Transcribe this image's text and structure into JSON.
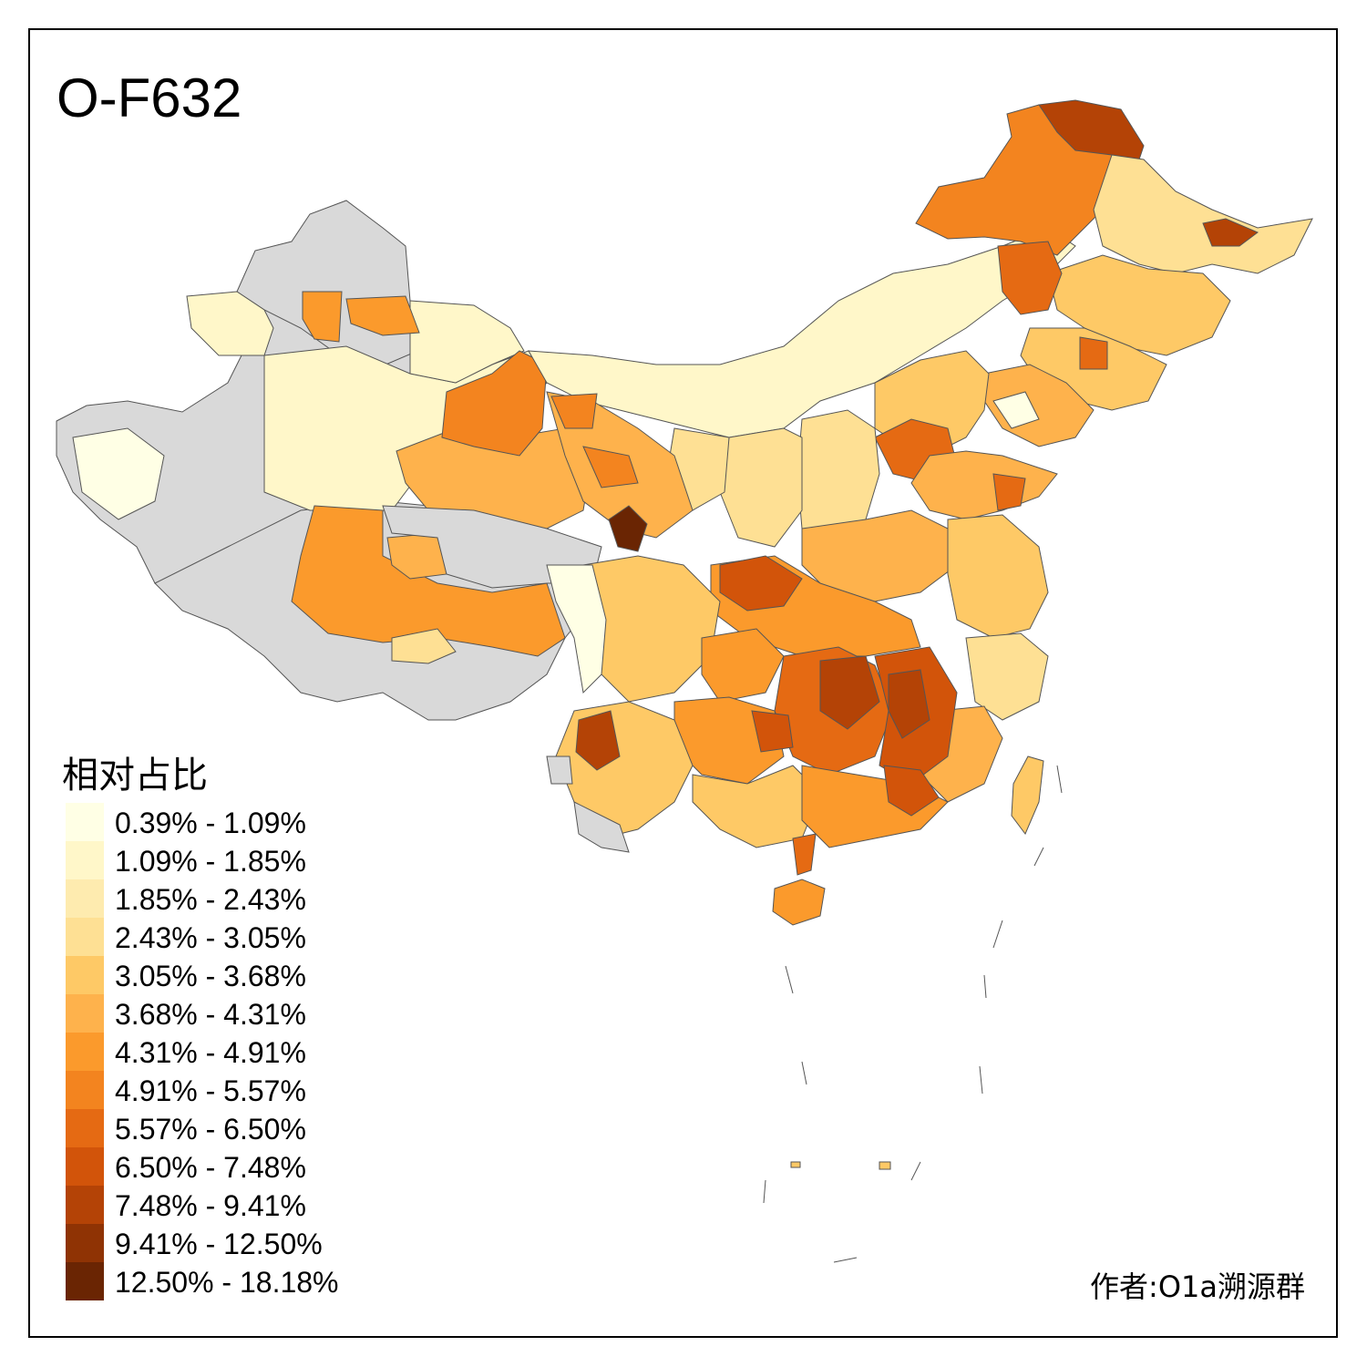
{
  "map": {
    "title": "O-F632",
    "author": "作者:O1a溯源群",
    "no_data_color": "#d9d9d9",
    "border_color": "#555555",
    "legend": {
      "title": "相对占比",
      "items": [
        {
          "label": "0.39% - 1.09%",
          "color": "#ffffe5"
        },
        {
          "label": "1.09% - 1.85%",
          "color": "#fff7c9"
        },
        {
          "label": "1.85% - 2.43%",
          "color": "#feebaf"
        },
        {
          "label": "2.43% - 3.05%",
          "color": "#fee094"
        },
        {
          "label": "3.05% - 3.68%",
          "color": "#fec966"
        },
        {
          "label": "3.68% - 4.31%",
          "color": "#feb24c"
        },
        {
          "label": "4.31% - 4.91%",
          "color": "#fb9a2c"
        },
        {
          "label": "4.91% - 5.57%",
          "color": "#f3841f"
        },
        {
          "label": "5.57% - 6.50%",
          "color": "#e56a13"
        },
        {
          "label": "6.50% - 7.48%",
          "color": "#d2540a"
        },
        {
          "label": "7.48% - 9.41%",
          "color": "#b44306"
        },
        {
          "label": "9.41% - 12.50%",
          "color": "#8f3304"
        },
        {
          "label": "12.50% - 18.18%",
          "color": "#6a2503"
        }
      ]
    }
  }
}
